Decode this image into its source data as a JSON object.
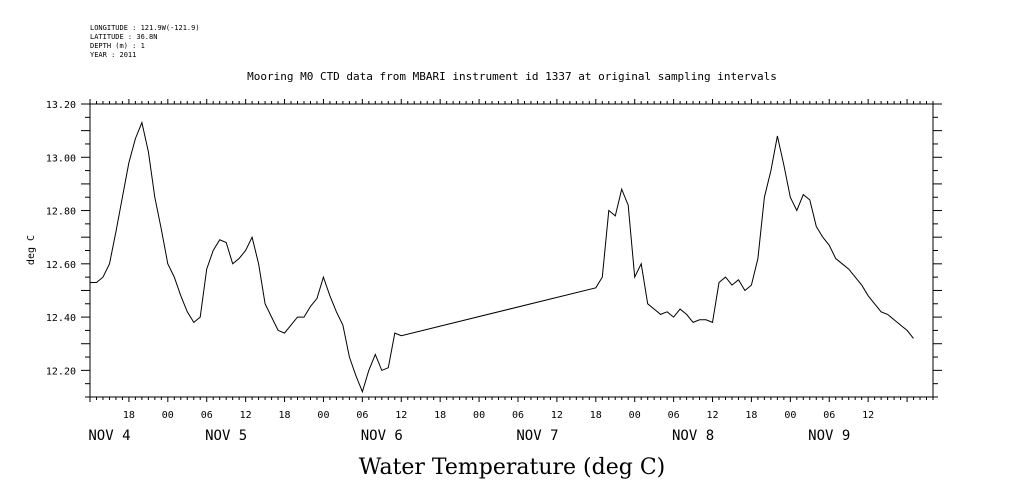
{
  "metadata": {
    "longitude": "LONGITUDE : 121.9W(-121.9)",
    "latitude": "LATITUDE : 36.8N",
    "depth": "DEPTH (m) : 1",
    "year": "YEAR : 2011"
  },
  "chart_data": {
    "type": "line",
    "title": "Mooring M0 CTD data from MBARI instrument id 1337 at original sampling intervals",
    "xlabel": "Water Temperature (deg C)",
    "ylabel": "deg C",
    "ylim": [
      12.1,
      13.2
    ],
    "xlim": [
      "2011-11-04 12:00",
      "2011-11-09 22:00"
    ],
    "y_ticks": [
      "12.20",
      "12.40",
      "12.60",
      "12.80",
      "13.00",
      "13.20"
    ],
    "x_hour_ticks": [
      {
        "t": "2011-11-04 18:00",
        "label": "18"
      },
      {
        "t": "2011-11-05 00:00",
        "label": "00"
      },
      {
        "t": "2011-11-05 06:00",
        "label": "06"
      },
      {
        "t": "2011-11-05 12:00",
        "label": "12"
      },
      {
        "t": "2011-11-05 18:00",
        "label": "18"
      },
      {
        "t": "2011-11-06 00:00",
        "label": "00"
      },
      {
        "t": "2011-11-06 06:00",
        "label": "06"
      },
      {
        "t": "2011-11-06 12:00",
        "label": "12"
      },
      {
        "t": "2011-11-06 18:00",
        "label": "18"
      },
      {
        "t": "2011-11-07 00:00",
        "label": "00"
      },
      {
        "t": "2011-11-07 06:00",
        "label": "06"
      },
      {
        "t": "2011-11-07 12:00",
        "label": "12"
      },
      {
        "t": "2011-11-07 18:00",
        "label": "18"
      },
      {
        "t": "2011-11-08 00:00",
        "label": "00"
      },
      {
        "t": "2011-11-08 06:00",
        "label": "06"
      },
      {
        "t": "2011-11-08 12:00",
        "label": "12"
      },
      {
        "t": "2011-11-08 18:00",
        "label": "18"
      },
      {
        "t": "2011-11-09 00:00",
        "label": "00"
      },
      {
        "t": "2011-11-09 06:00",
        "label": "06"
      },
      {
        "t": "2011-11-09 12:00",
        "label": "12"
      }
    ],
    "x_day_labels": [
      {
        "t": "2011-11-04 15:00",
        "label": "NOV  4"
      },
      {
        "t": "2011-11-05 09:00",
        "label": "NOV  5"
      },
      {
        "t": "2011-11-06 09:00",
        "label": "NOV  6"
      },
      {
        "t": "2011-11-07 09:00",
        "label": "NOV  7"
      },
      {
        "t": "2011-11-08 09:00",
        "label": "NOV  8"
      },
      {
        "t": "2011-11-09 06:00",
        "label": "NOV  9"
      }
    ],
    "series": [
      {
        "color": "#000000",
        "points": [
          [
            "2011-11-04 12:00",
            12.53
          ],
          [
            "2011-11-04 13:00",
            12.53
          ],
          [
            "2011-11-04 14:00",
            12.55
          ],
          [
            "2011-11-04 15:00",
            12.6
          ],
          [
            "2011-11-04 16:00",
            12.72
          ],
          [
            "2011-11-04 17:00",
            12.85
          ],
          [
            "2011-11-04 18:00",
            12.98
          ],
          [
            "2011-11-04 19:00",
            13.07
          ],
          [
            "2011-11-04 20:00",
            13.13
          ],
          [
            "2011-11-04 21:00",
            13.02
          ],
          [
            "2011-11-04 22:00",
            12.85
          ],
          [
            "2011-11-04 23:00",
            12.73
          ],
          [
            "2011-11-05 00:00",
            12.6
          ],
          [
            "2011-11-05 01:00",
            12.55
          ],
          [
            "2011-11-05 02:00",
            12.48
          ],
          [
            "2011-11-05 03:00",
            12.42
          ],
          [
            "2011-11-05 04:00",
            12.38
          ],
          [
            "2011-11-05 05:00",
            12.4
          ],
          [
            "2011-11-05 06:00",
            12.58
          ],
          [
            "2011-11-05 07:00",
            12.65
          ],
          [
            "2011-11-05 08:00",
            12.69
          ],
          [
            "2011-11-05 09:00",
            12.68
          ],
          [
            "2011-11-05 10:00",
            12.6
          ],
          [
            "2011-11-05 11:00",
            12.62
          ],
          [
            "2011-11-05 12:00",
            12.65
          ],
          [
            "2011-11-05 13:00",
            12.7
          ],
          [
            "2011-11-05 14:00",
            12.6
          ],
          [
            "2011-11-05 15:00",
            12.45
          ],
          [
            "2011-11-05 16:00",
            12.4
          ],
          [
            "2011-11-05 17:00",
            12.35
          ],
          [
            "2011-11-05 18:00",
            12.34
          ],
          [
            "2011-11-05 19:00",
            12.37
          ],
          [
            "2011-11-05 20:00",
            12.4
          ],
          [
            "2011-11-05 21:00",
            12.4
          ],
          [
            "2011-11-05 22:00",
            12.44
          ],
          [
            "2011-11-05 23:00",
            12.47
          ],
          [
            "2011-11-06 00:00",
            12.55
          ],
          [
            "2011-11-06 01:00",
            12.48
          ],
          [
            "2011-11-06 02:00",
            12.42
          ],
          [
            "2011-11-06 03:00",
            12.37
          ],
          [
            "2011-11-06 04:00",
            12.25
          ],
          [
            "2011-11-06 05:00",
            12.18
          ],
          [
            "2011-11-06 06:00",
            12.12
          ],
          [
            "2011-11-06 07:00",
            12.2
          ],
          [
            "2011-11-06 08:00",
            12.26
          ],
          [
            "2011-11-06 09:00",
            12.2
          ],
          [
            "2011-11-06 10:00",
            12.21
          ],
          [
            "2011-11-06 11:00",
            12.34
          ],
          [
            "2011-11-06 12:00",
            12.33
          ],
          [
            "2011-11-07 18:00",
            12.51
          ],
          [
            "2011-11-07 19:00",
            12.55
          ],
          [
            "2011-11-07 20:00",
            12.8
          ],
          [
            "2011-11-07 21:00",
            12.78
          ],
          [
            "2011-11-07 22:00",
            12.88
          ],
          [
            "2011-11-07 23:00",
            12.82
          ],
          [
            "2011-11-08 00:00",
            12.55
          ],
          [
            "2011-11-08 01:00",
            12.6
          ],
          [
            "2011-11-08 02:00",
            12.45
          ],
          [
            "2011-11-08 03:00",
            12.43
          ],
          [
            "2011-11-08 04:00",
            12.41
          ],
          [
            "2011-11-08 05:00",
            12.42
          ],
          [
            "2011-11-08 06:00",
            12.4
          ],
          [
            "2011-11-08 07:00",
            12.43
          ],
          [
            "2011-11-08 08:00",
            12.41
          ],
          [
            "2011-11-08 09:00",
            12.38
          ],
          [
            "2011-11-08 10:00",
            12.39
          ],
          [
            "2011-11-08 11:00",
            12.39
          ],
          [
            "2011-11-08 12:00",
            12.38
          ],
          [
            "2011-11-08 13:00",
            12.53
          ],
          [
            "2011-11-08 14:00",
            12.55
          ],
          [
            "2011-11-08 15:00",
            12.52
          ],
          [
            "2011-11-08 16:00",
            12.54
          ],
          [
            "2011-11-08 17:00",
            12.5
          ],
          [
            "2011-11-08 18:00",
            12.52
          ],
          [
            "2011-11-08 19:00",
            12.62
          ],
          [
            "2011-11-08 20:00",
            12.85
          ],
          [
            "2011-11-08 21:00",
            12.95
          ],
          [
            "2011-11-08 22:00",
            13.08
          ],
          [
            "2011-11-08 23:00",
            12.97
          ],
          [
            "2011-11-09 00:00",
            12.85
          ],
          [
            "2011-11-09 01:00",
            12.8
          ],
          [
            "2011-11-09 02:00",
            12.86
          ],
          [
            "2011-11-09 03:00",
            12.84
          ],
          [
            "2011-11-09 04:00",
            12.74
          ],
          [
            "2011-11-09 05:00",
            12.7
          ],
          [
            "2011-11-09 06:00",
            12.67
          ],
          [
            "2011-11-09 07:00",
            12.62
          ],
          [
            "2011-11-09 08:00",
            12.6
          ],
          [
            "2011-11-09 09:00",
            12.58
          ],
          [
            "2011-11-09 10:00",
            12.55
          ],
          [
            "2011-11-09 11:00",
            12.52
          ],
          [
            "2011-11-09 12:00",
            12.48
          ],
          [
            "2011-11-09 13:00",
            12.45
          ],
          [
            "2011-11-09 14:00",
            12.42
          ],
          [
            "2011-11-09 15:00",
            12.41
          ],
          [
            "2011-11-09 16:00",
            12.39
          ],
          [
            "2011-11-09 17:00",
            12.37
          ],
          [
            "2011-11-09 18:00",
            12.35
          ],
          [
            "2011-11-09 19:00",
            12.32
          ]
        ]
      }
    ],
    "grid": false,
    "legend": "none"
  }
}
